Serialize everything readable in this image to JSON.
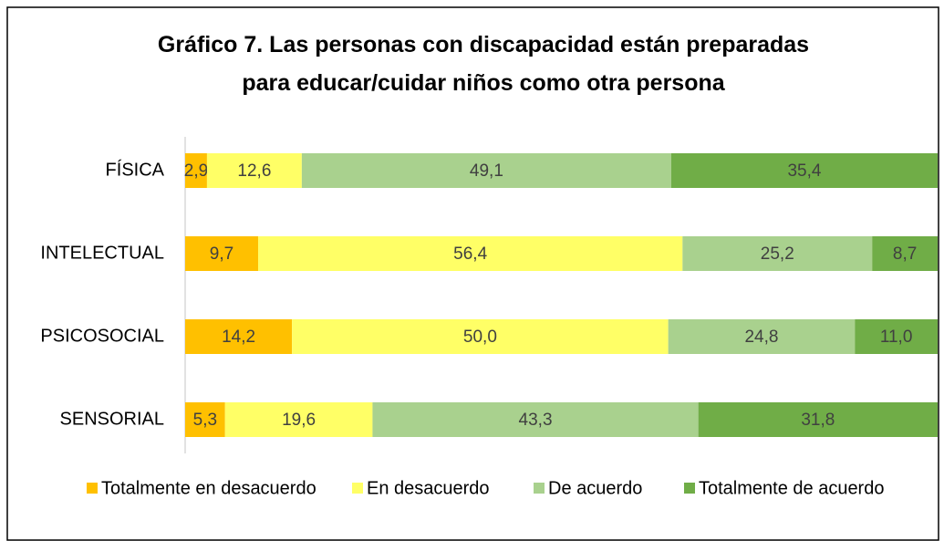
{
  "chart_data": {
    "type": "stacked_bar_horizontal",
    "title": "Gráfico 7. Las personas con discapacidad están preparadas para educar/cuidar niños como otra persona",
    "categories": [
      "FÍSICA",
      "INTELECTUAL",
      "PSICOSOCIAL",
      "SENSORIAL"
    ],
    "xlim": [
      0,
      100
    ],
    "legend": "bottom",
    "series": [
      {
        "name": "Totalmente en desacuerdo",
        "color": "#ffc000",
        "values": [
          2.9,
          9.7,
          14.2,
          5.3
        ],
        "value_labels": [
          "2,9",
          "9,7",
          "14,2",
          "5,3"
        ]
      },
      {
        "name": "En desacuerdo",
        "color": "#ffff66",
        "values": [
          12.6,
          56.4,
          50.0,
          19.6
        ],
        "value_labels": [
          "12,6",
          "56,4",
          "50,0",
          "19,6"
        ]
      },
      {
        "name": "De acuerdo",
        "color": "#a9d18e",
        "values": [
          49.1,
          25.2,
          24.8,
          43.3
        ],
        "value_labels": [
          "49,1",
          "25,2",
          "24,8",
          "43,3"
        ]
      },
      {
        "name": "Totalmente de acuerdo",
        "color": "#70ad47",
        "values": [
          35.4,
          8.7,
          11.0,
          31.8
        ],
        "value_labels": [
          "35,4",
          "8,7",
          "11,0",
          "31,8"
        ]
      }
    ]
  }
}
